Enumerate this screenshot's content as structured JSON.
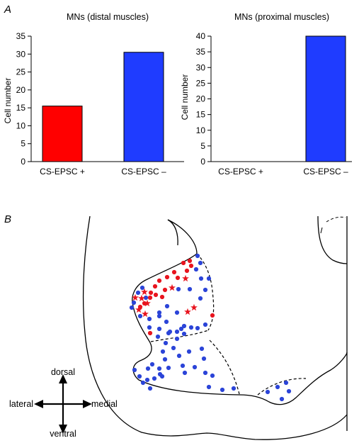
{
  "panels": {
    "a_label": "A",
    "b_label": "B"
  },
  "chart_data": [
    {
      "type": "bar",
      "title": "MNs (distal muscles)",
      "ylabel": "Cell number",
      "xlabel": "",
      "categories": [
        "CS-EPSC +",
        "CS-EPSC –"
      ],
      "values": [
        15.5,
        30.5
      ],
      "colors": [
        "#ff0000",
        "#1f3cff"
      ],
      "ylim": [
        0,
        35
      ],
      "yticks": [
        0,
        5,
        10,
        15,
        20,
        25,
        30,
        35
      ],
      "grid": false
    },
    {
      "type": "bar",
      "title": "MNs (proximal muscles)",
      "ylabel": "Cell number",
      "xlabel": "",
      "categories": [
        "CS-EPSC +",
        "CS-EPSC –"
      ],
      "values": [
        0,
        40
      ],
      "colors": [
        "#ff0000",
        "#1f3cff"
      ],
      "ylim": [
        0,
        40
      ],
      "yticks": [
        0,
        5,
        10,
        15,
        20,
        25,
        30,
        35,
        40
      ],
      "grid": false
    }
  ],
  "diagram": {
    "directions": {
      "up": "dorsal",
      "down": "ventral",
      "left": "lateral",
      "right": "medial"
    },
    "positive_color": "#e8141e",
    "negative_color": "#2b44d8"
  }
}
